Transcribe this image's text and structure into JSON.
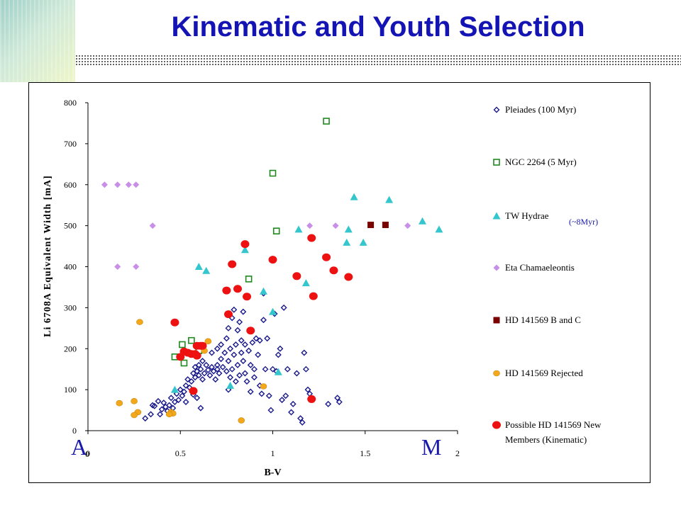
{
  "header": {
    "title": "Kinematic and Youth Selection"
  },
  "annotations": {
    "a_letter": "A",
    "a_sub": "0",
    "m_letter": "M"
  },
  "colors": {
    "title": "#1414b4",
    "pleiades": "#1a1a8c",
    "ngc2264": "#1e8a1e",
    "tw_hydrae": "#33c6cc",
    "eta_cha": "#c88ee8",
    "hd141569_bc": "#7a0000",
    "hd141569_rejected": "#f2a81a",
    "possible_members": "#ee1111"
  },
  "chart_data": {
    "type": "scatter",
    "xlabel": "B-V",
    "ylabel": "Li 6708A Equivalent Width [mA]",
    "xlim": [
      0,
      2
    ],
    "ylim": [
      0,
      800
    ],
    "x_ticks": [
      "0",
      "0.5",
      "1",
      "1.5",
      "2"
    ],
    "y_ticks": [
      "0",
      "100",
      "200",
      "300",
      "400",
      "500",
      "600",
      "700",
      "800"
    ],
    "grid": false,
    "legend_position": "right",
    "series": [
      {
        "name": "Pleiades (100 Myr)",
        "marker": "diamond-open",
        "points": [
          [
            0.31,
            30
          ],
          [
            0.34,
            40
          ],
          [
            0.35,
            62
          ],
          [
            0.36,
            60
          ],
          [
            0.38,
            72
          ],
          [
            0.39,
            40
          ],
          [
            0.4,
            52
          ],
          [
            0.41,
            68
          ],
          [
            0.42,
            58
          ],
          [
            0.43,
            48
          ],
          [
            0.44,
            62
          ],
          [
            0.45,
            80
          ],
          [
            0.46,
            55
          ],
          [
            0.47,
            70
          ],
          [
            0.48,
            90
          ],
          [
            0.49,
            75
          ],
          [
            0.5,
            100
          ],
          [
            0.51,
            85
          ],
          [
            0.52,
            95
          ],
          [
            0.53,
            110
          ],
          [
            0.53,
            70
          ],
          [
            0.54,
            125
          ],
          [
            0.55,
            105
          ],
          [
            0.56,
            120
          ],
          [
            0.57,
            140
          ],
          [
            0.57,
            88
          ],
          [
            0.58,
            130
          ],
          [
            0.58,
            155
          ],
          [
            0.59,
            145
          ],
          [
            0.59,
            80
          ],
          [
            0.6,
            135
          ],
          [
            0.6,
            160
          ],
          [
            0.61,
            150
          ],
          [
            0.61,
            55
          ],
          [
            0.62,
            125
          ],
          [
            0.62,
            170
          ],
          [
            0.63,
            140
          ],
          [
            0.64,
            160
          ],
          [
            0.65,
            148
          ],
          [
            0.66,
            135
          ],
          [
            0.67,
            155
          ],
          [
            0.67,
            190
          ],
          [
            0.68,
            145
          ],
          [
            0.69,
            125
          ],
          [
            0.7,
            160
          ],
          [
            0.7,
            200
          ],
          [
            0.71,
            140
          ],
          [
            0.72,
            175
          ],
          [
            0.72,
            210
          ],
          [
            0.73,
            155
          ],
          [
            0.74,
            190
          ],
          [
            0.75,
            145
          ],
          [
            0.75,
            225
          ],
          [
            0.76,
            170
          ],
          [
            0.76,
            250
          ],
          [
            0.77,
            130
          ],
          [
            0.77,
            200
          ],
          [
            0.78,
            150
          ],
          [
            0.78,
            275
          ],
          [
            0.79,
            185
          ],
          [
            0.79,
            295
          ],
          [
            0.8,
            120
          ],
          [
            0.8,
            210
          ],
          [
            0.81,
            160
          ],
          [
            0.81,
            245
          ],
          [
            0.82,
            135
          ],
          [
            0.82,
            265
          ],
          [
            0.83,
            190
          ],
          [
            0.83,
            220
          ],
          [
            0.84,
            290
          ],
          [
            0.84,
            170
          ],
          [
            0.85,
            140
          ],
          [
            0.85,
            210
          ],
          [
            0.86,
            120
          ],
          [
            0.87,
            195
          ],
          [
            0.88,
            160
          ],
          [
            0.88,
            95
          ],
          [
            0.89,
            215
          ],
          [
            0.9,
            130
          ],
          [
            0.9,
            150
          ],
          [
            0.91,
            225
          ],
          [
            0.92,
            185
          ],
          [
            0.93,
            220
          ],
          [
            0.94,
            90
          ],
          [
            0.95,
            270
          ],
          [
            0.95,
            335
          ],
          [
            0.96,
            150
          ],
          [
            0.97,
            225
          ],
          [
            0.98,
            85
          ],
          [
            0.99,
            50
          ],
          [
            1.0,
            150
          ],
          [
            1.01,
            285
          ],
          [
            1.02,
            145
          ],
          [
            1.03,
            185
          ],
          [
            1.04,
            200
          ],
          [
            1.05,
            75
          ],
          [
            1.06,
            300
          ],
          [
            1.07,
            85
          ],
          [
            1.08,
            150
          ],
          [
            1.1,
            45
          ],
          [
            1.11,
            65
          ],
          [
            1.13,
            140
          ],
          [
            1.15,
            30
          ],
          [
            1.16,
            20
          ],
          [
            1.17,
            190
          ],
          [
            1.18,
            150
          ],
          [
            1.19,
            100
          ],
          [
            1.2,
            90
          ],
          [
            1.3,
            65
          ],
          [
            1.35,
            80
          ],
          [
            1.36,
            70
          ],
          [
            0.76,
            100
          ],
          [
            0.93,
            110
          ],
          [
            0.7,
            150
          ]
        ]
      },
      {
        "name": "NGC 2264 (5 Myr)",
        "marker": "square-open",
        "points": [
          [
            1.29,
            755
          ],
          [
            1.0,
            628
          ],
          [
            1.02,
            487
          ],
          [
            0.87,
            370
          ],
          [
            0.56,
            220
          ],
          [
            0.51,
            210
          ],
          [
            0.52,
            165
          ],
          [
            0.47,
            180
          ],
          [
            0.6,
            195
          ]
        ]
      },
      {
        "name": "TW Hydrae",
        "marker": "triangle",
        "points": [
          [
            1.44,
            570
          ],
          [
            1.63,
            563
          ],
          [
            1.81,
            511
          ],
          [
            1.9,
            491
          ],
          [
            1.14,
            491
          ],
          [
            1.41,
            491
          ],
          [
            1.4,
            459
          ],
          [
            1.49,
            459
          ],
          [
            0.85,
            441
          ],
          [
            0.6,
            400
          ],
          [
            0.64,
            390
          ],
          [
            1.18,
            360
          ],
          [
            0.95,
            340
          ],
          [
            1.0,
            290
          ],
          [
            1.03,
            143
          ],
          [
            0.77,
            110
          ],
          [
            0.47,
            100
          ]
        ]
      },
      {
        "name": "Eta Chamaeleontis",
        "marker": "diamond",
        "points": [
          [
            0.09,
            600
          ],
          [
            0.16,
            600
          ],
          [
            0.22,
            600
          ],
          [
            0.26,
            600
          ],
          [
            0.35,
            500
          ],
          [
            1.2,
            500
          ],
          [
            1.34,
            500
          ],
          [
            1.73,
            500
          ],
          [
            0.16,
            400
          ],
          [
            0.26,
            400
          ]
        ]
      },
      {
        "name": "HD 141569 B and C",
        "marker": "square",
        "points": [
          [
            1.53,
            502
          ],
          [
            1.61,
            502
          ]
        ]
      },
      {
        "name": "HD 141569 Rejected",
        "marker": "circle",
        "points": [
          [
            0.28,
            265
          ],
          [
            0.65,
            218
          ],
          [
            0.63,
            195
          ],
          [
            0.17,
            67
          ],
          [
            0.25,
            72
          ],
          [
            0.27,
            45
          ],
          [
            0.25,
            38
          ],
          [
            0.45,
            45
          ],
          [
            0.46,
            42
          ],
          [
            0.44,
            40
          ],
          [
            0.95,
            108
          ],
          [
            0.83,
            25
          ]
        ]
      },
      {
        "name": "Possible HD 141569 New Members (Kinematic)",
        "marker": "circle-big",
        "points": [
          [
            0.85,
            455
          ],
          [
            1.21,
            470
          ],
          [
            1.29,
            423
          ],
          [
            0.78,
            406
          ],
          [
            1.0,
            417
          ],
          [
            1.13,
            377
          ],
          [
            1.33,
            391
          ],
          [
            1.41,
            375
          ],
          [
            0.75,
            342
          ],
          [
            0.81,
            346
          ],
          [
            0.86,
            327
          ],
          [
            1.22,
            328
          ],
          [
            0.76,
            284
          ],
          [
            0.47,
            264
          ],
          [
            0.88,
            244
          ],
          [
            0.59,
            207
          ],
          [
            0.61,
            207
          ],
          [
            0.62,
            207
          ],
          [
            0.52,
            193
          ],
          [
            0.54,
            190
          ],
          [
            0.56,
            187
          ],
          [
            0.58,
            187
          ],
          [
            0.59,
            183
          ],
          [
            0.5,
            180
          ],
          [
            0.57,
            97
          ],
          [
            1.21,
            77
          ]
        ]
      }
    ]
  },
  "legend": {
    "items": [
      {
        "label": "Pleiades (100 Myr)"
      },
      {
        "label": "NGC 2264 (5 Myr)"
      },
      {
        "label": "TW Hydrae",
        "note": "(~8Myr)"
      },
      {
        "label": "Eta Chamaeleontis"
      },
      {
        "label": "HD 141569 B and C"
      },
      {
        "label": "HD 141569 Rejected"
      },
      {
        "label": "Possible HD 141569 New",
        "label2": "Members (Kinematic)"
      }
    ]
  }
}
